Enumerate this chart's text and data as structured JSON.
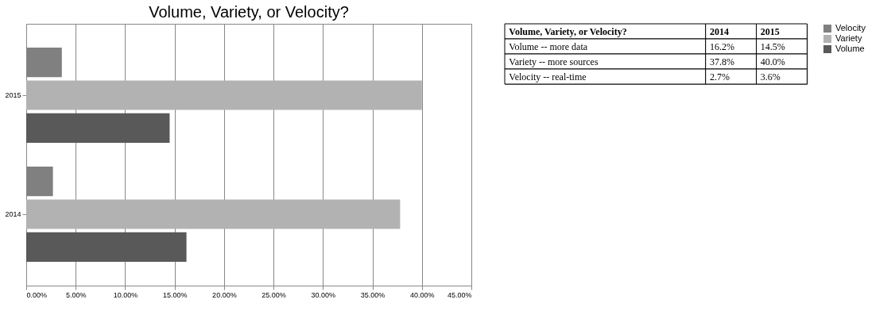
{
  "chart_data": [
    {
      "type": "bar",
      "title": "Volume, Variety, or Velocity?",
      "orientation": "horizontal",
      "categories": [
        "2015",
        "2014"
      ],
      "series": [
        {
          "name": "Velocity",
          "color": "#808080",
          "values": [
            3.6,
            2.7
          ]
        },
        {
          "name": "Variety",
          "color": "#b2b2b2",
          "values": [
            40.0,
            37.8
          ]
        },
        {
          "name": "Volume",
          "color": "#595959",
          "values": [
            14.5,
            16.2
          ]
        }
      ],
      "xlim": [
        0,
        45
      ],
      "xticks": [
        {
          "value": 0,
          "label": "0.00%"
        },
        {
          "value": 5,
          "label": "5.00%"
        },
        {
          "value": 10,
          "label": "10.00%"
        },
        {
          "value": 15,
          "label": "15.00%"
        },
        {
          "value": 20,
          "label": "20.00%"
        },
        {
          "value": 25,
          "label": "25.00%"
        },
        {
          "value": 30,
          "label": "30.00%"
        },
        {
          "value": 35,
          "label": "35.00%"
        },
        {
          "value": 40,
          "label": "40.00%"
        },
        {
          "value": 45,
          "label": "45.00%"
        }
      ],
      "grid": "x",
      "legend": "right"
    },
    {
      "type": "other",
      "title": "Volume, Variety, or Velocity?",
      "categories": [
        "2014",
        "2015"
      ],
      "y_categories": [
        "Volume -- more data",
        "Variety -- more sources",
        "Velocity -- real-time"
      ],
      "cell_labels": [
        [
          "16.2%",
          "14.5%"
        ],
        [
          "37.8%",
          "40.0%"
        ],
        [
          "2.7%",
          "3.6%"
        ]
      ]
    }
  ]
}
